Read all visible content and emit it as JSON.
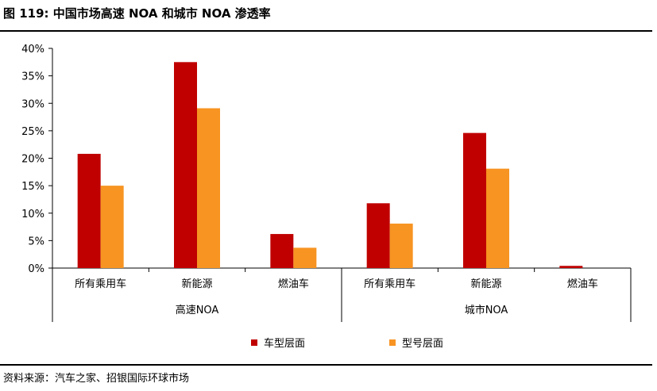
{
  "title": "图 119: 中国市场高速 NOA 和城市 NOA 渗透率",
  "source": "资料来源：汽车之家、招银国际环球市场",
  "colors": {
    "series1": "#C00000",
    "series2": "#F79422"
  },
  "chart_data": {
    "type": "bar",
    "y_ticks": [
      "40%",
      "35%",
      "30%",
      "25%",
      "20%",
      "15%",
      "10%",
      "5%",
      "0%"
    ],
    "ylim": [
      0,
      40
    ],
    "groups": [
      {
        "label": "高速NOA",
        "categories": [
          "所有乘用车",
          "新能源",
          "燃油车"
        ]
      },
      {
        "label": "城市NOA",
        "categories": [
          "所有乘用车",
          "新能源",
          "燃油车"
        ]
      }
    ],
    "series": [
      {
        "name": "车型层面",
        "values": [
          20.8,
          37.5,
          6.2,
          11.8,
          24.6,
          0.4
        ]
      },
      {
        "name": "型号层面",
        "values": [
          15.0,
          29.1,
          3.7,
          8.1,
          18.1,
          0.0
        ]
      }
    ],
    "legend_position": "bottom",
    "grid": false
  }
}
